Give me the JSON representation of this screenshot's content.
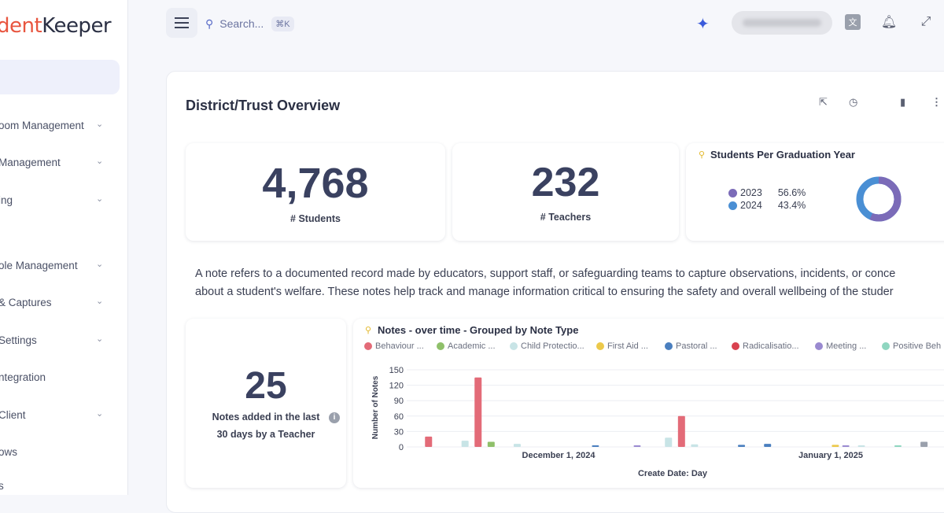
{
  "logo": {
    "part1": "dent",
    "part2": "Keeper"
  },
  "sidebar": {
    "items": [
      {
        "label": "oom Management",
        "has_chevron": true
      },
      {
        "label": "Management",
        "has_chevron": true
      },
      {
        "label": "ing",
        "has_chevron": true
      },
      {
        "label": "ole Management",
        "has_chevron": true
      },
      {
        "label": "& Captures",
        "has_chevron": true
      },
      {
        "label": "Settings",
        "has_chevron": true
      },
      {
        "label": "ntegration",
        "has_chevron": false
      },
      {
        "label": "Client",
        "has_chevron": true
      },
      {
        "label": "ows",
        "has_chevron": false
      },
      {
        "label": "s",
        "has_chevron": false
      }
    ]
  },
  "topbar": {
    "search_placeholder": "Search...",
    "search_shortcut": "⌘K",
    "icons": [
      "menu-icon",
      "search-icon",
      "sparkle-icon",
      "language-icon",
      "bell-icon",
      "expand-icon"
    ]
  },
  "page": {
    "title": "District/Trust Overview",
    "header_icons": [
      "share-icon",
      "clock-icon",
      "bookmark-icon",
      "more-icon"
    ]
  },
  "stats": {
    "students_value": "4,768",
    "students_label": "# Students",
    "teachers_value": "232",
    "teachers_label": "# Teachers"
  },
  "graduation": {
    "title": "Students Per Graduation Year",
    "rows": [
      {
        "year": "2023",
        "pct": "56.6%",
        "color": "#7b6bb8"
      },
      {
        "year": "2024",
        "pct": "43.4%",
        "color": "#4a8fd4"
      }
    ]
  },
  "note": {
    "line1": "A note refers to a documented record made by educators, support staff, or safeguarding teams to capture observations, incidents, or conce",
    "line2": "about a student's welfare. These notes help track and manage information critical to ensuring the safety and overall wellbeing of the studer"
  },
  "notes_kpi": {
    "value": "25",
    "label_line1": "Notes added in the last",
    "label_line2": "30 days by a Teacher"
  },
  "chart_data": {
    "type": "bar",
    "title": "Notes - over time - Grouped by Note Type",
    "xlabel": "Create Date: Day",
    "ylabel": "Number of Notes",
    "ylim": [
      0,
      150
    ],
    "yticks": [
      "150",
      "120",
      "90",
      "60",
      "30",
      "0"
    ],
    "xticks": [
      "December 1, 2024",
      "January 1, 2025"
    ],
    "legend": [
      {
        "name": "Behaviour ...",
        "color": "#e36b78"
      },
      {
        "name": "Academic ...",
        "color": "#8fc06a"
      },
      {
        "name": "Child Protectio...",
        "color": "#c8e4e6"
      },
      {
        "name": "First Aid ...",
        "color": "#ecc94b"
      },
      {
        "name": "Pastoral ...",
        "color": "#4a7fbf"
      },
      {
        "name": "Radicalisatio...",
        "color": "#d9424f"
      },
      {
        "name": "Meeting ...",
        "color": "#9a8ad0"
      },
      {
        "name": "Positive Beh",
        "color": "#8fd6c0"
      }
    ],
    "bars": [
      {
        "x": 0.02,
        "value": 20,
        "color": "#e36b78"
      },
      {
        "x": 0.09,
        "value": 12,
        "color": "#c8e4e6"
      },
      {
        "x": 0.115,
        "value": 135,
        "color": "#e36b78"
      },
      {
        "x": 0.14,
        "value": 10,
        "color": "#8fc06a"
      },
      {
        "x": 0.19,
        "value": 6,
        "color": "#c8e4e6"
      },
      {
        "x": 0.34,
        "value": 3,
        "color": "#4a7fbf"
      },
      {
        "x": 0.42,
        "value": 3,
        "color": "#9a8ad0"
      },
      {
        "x": 0.48,
        "value": 18,
        "color": "#c8e4e6"
      },
      {
        "x": 0.505,
        "value": 60,
        "color": "#e36b78"
      },
      {
        "x": 0.53,
        "value": 5,
        "color": "#c8e4e6"
      },
      {
        "x": 0.62,
        "value": 4,
        "color": "#4a7fbf"
      },
      {
        "x": 0.67,
        "value": 6,
        "color": "#4a7fbf"
      },
      {
        "x": 0.8,
        "value": 4,
        "color": "#ecc94b"
      },
      {
        "x": 0.82,
        "value": 3,
        "color": "#9a8ad0"
      },
      {
        "x": 0.85,
        "value": 3,
        "color": "#c8e4e6"
      },
      {
        "x": 0.92,
        "value": 3,
        "color": "#8fd6c0"
      },
      {
        "x": 0.97,
        "value": 10,
        "color": "#9aa0ac"
      }
    ]
  }
}
